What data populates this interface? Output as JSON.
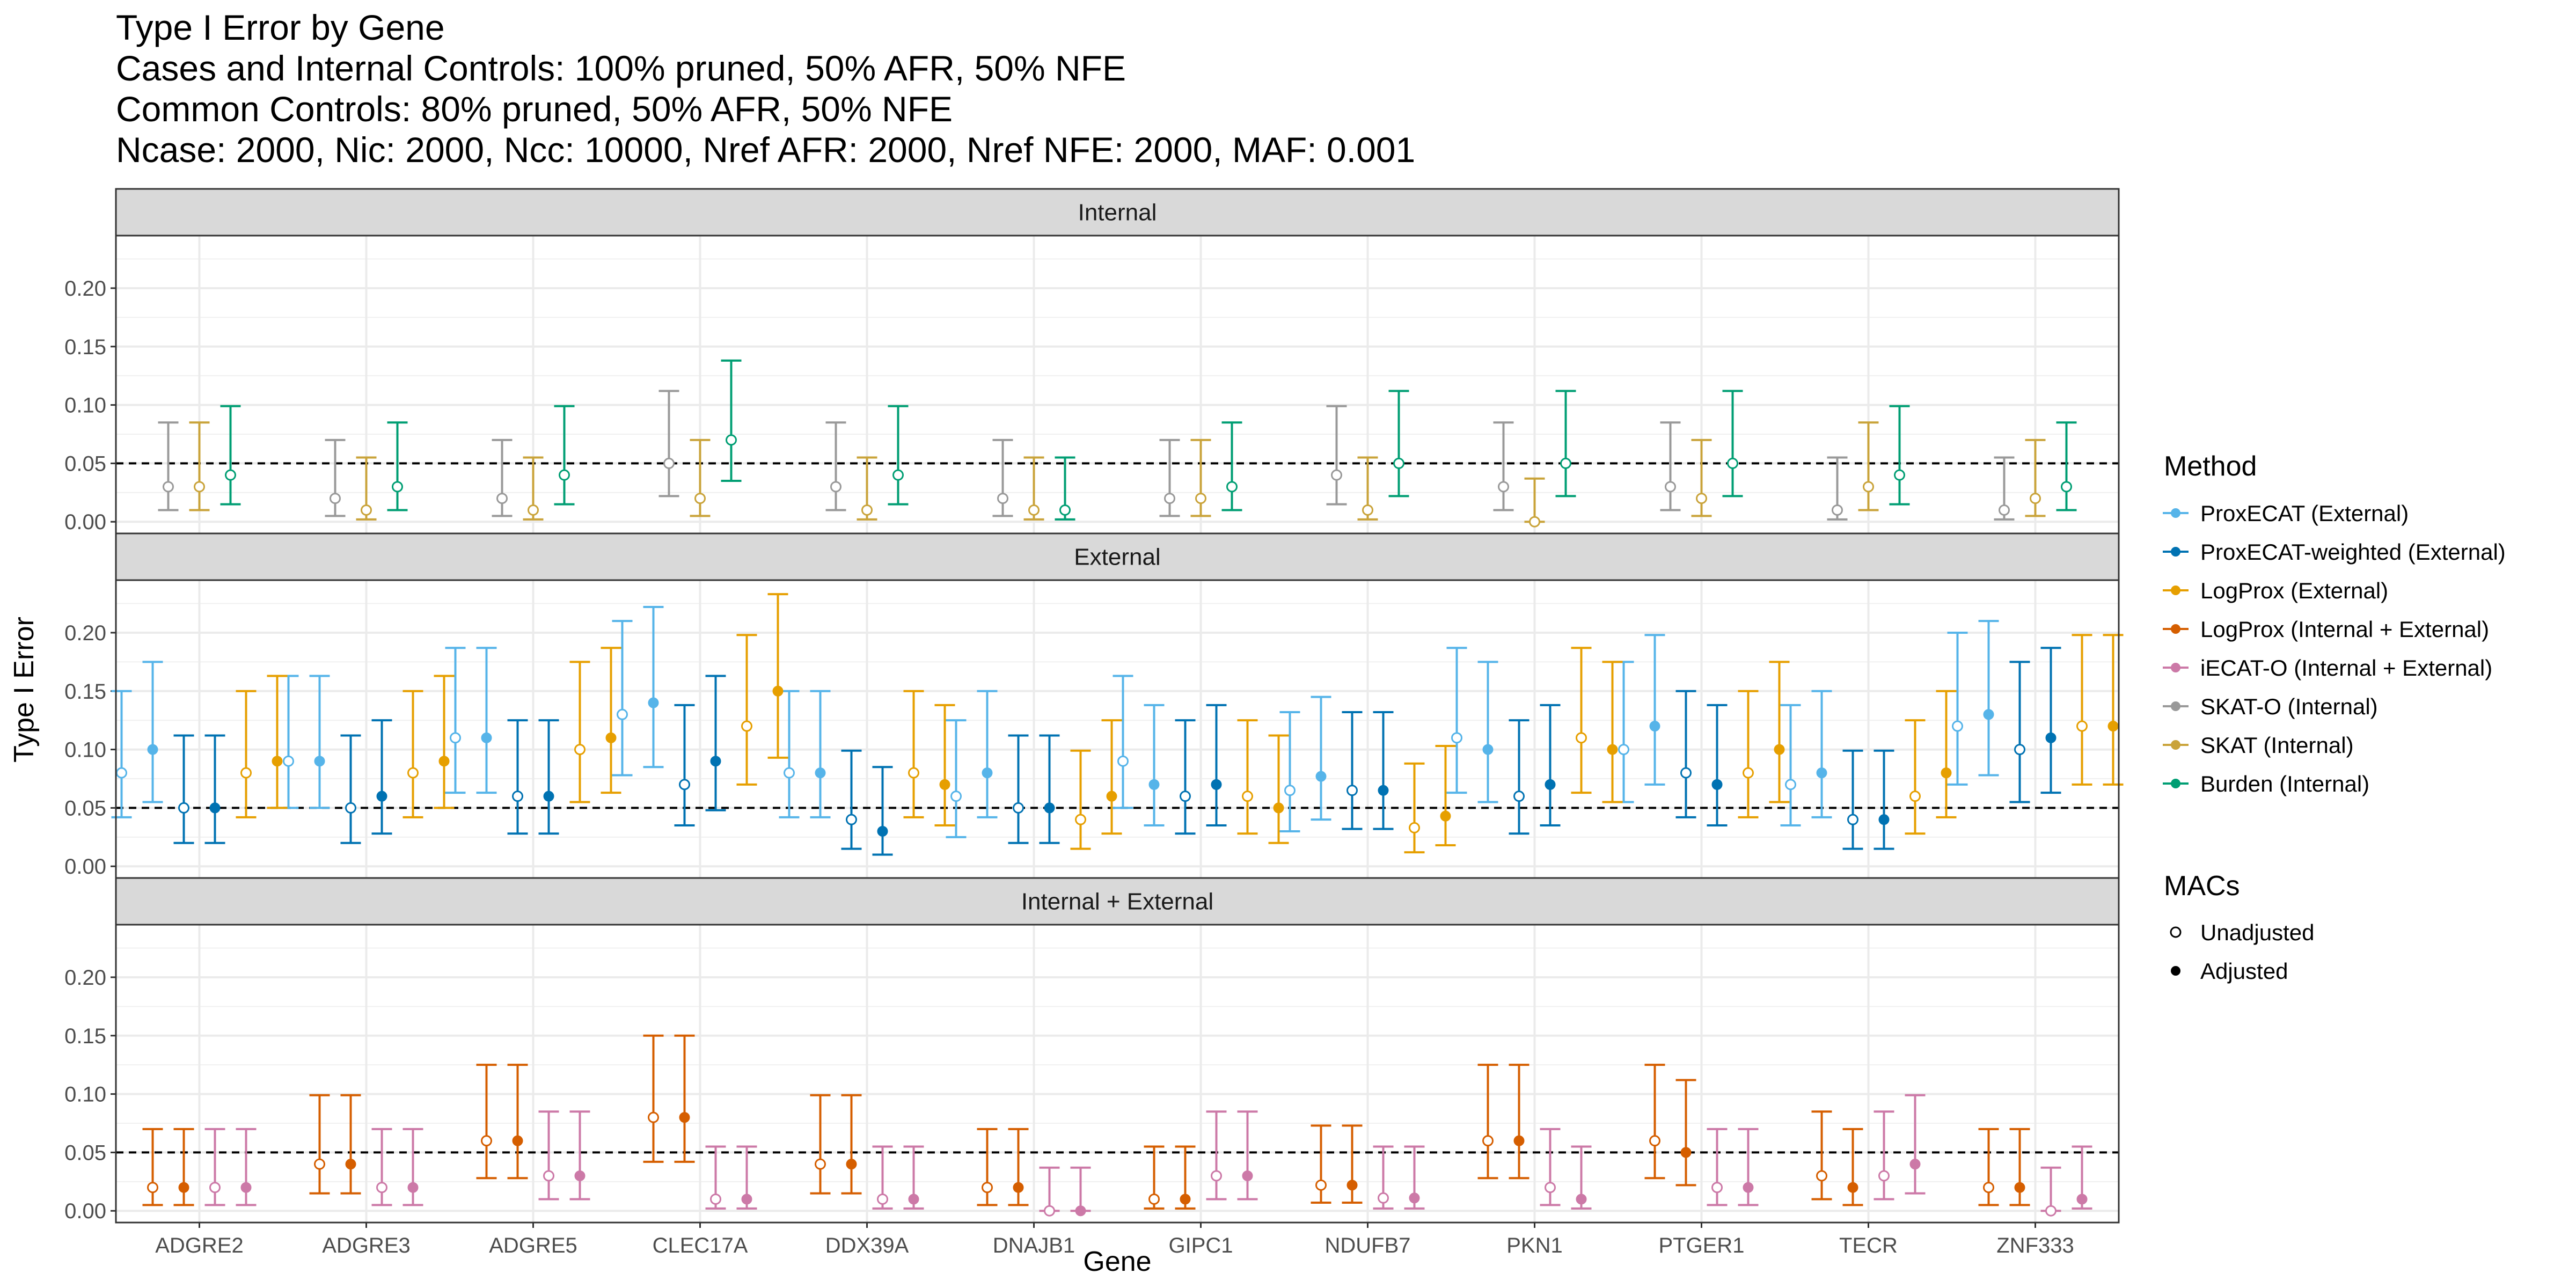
{
  "chart_data": {
    "type": "errorbar",
    "title_lines": [
      "Type I Error by Gene",
      "Cases and Internal Controls: 100% pruned, 50% AFR, 50% NFE",
      "Common Controls: 80% pruned, 50% AFR, 50% NFE",
      "Ncase: 2000, Nic: 2000, Ncc: 10000, Nref AFR: 2000, Nref NFE: 2000, MAF: 0.001"
    ],
    "xlabel": "Gene",
    "ylabel": "Type I Error",
    "ylim": [
      -0.01,
      0.245
    ],
    "yticks": [
      0.0,
      0.05,
      0.1,
      0.15,
      0.2
    ],
    "ytick_labels": [
      "0.00",
      "0.05",
      "0.10",
      "0.15",
      "0.20"
    ],
    "reference_line": 0.05,
    "grid": true,
    "legend_position": "right",
    "categories": [
      "ADGRE2",
      "ADGRE3",
      "ADGRE5",
      "CLEC17A",
      "DDX39A",
      "DNAJB1",
      "GIPC1",
      "NDUFB7",
      "PKN1",
      "PTGER1",
      "TECR",
      "ZNF333"
    ],
    "methods": [
      {
        "name": "ProxECAT (External)",
        "color": "#56B4E9"
      },
      {
        "name": "ProxECAT-weighted (External)",
        "color": "#0072B2"
      },
      {
        "name": "LogProx (External)",
        "color": "#E69F00"
      },
      {
        "name": "LogProx (Internal + External)",
        "color": "#D55E00"
      },
      {
        "name": "iECAT-O (Internal + External)",
        "color": "#CC79A7"
      },
      {
        "name": "SKAT-O (Internal)",
        "color": "#999999"
      },
      {
        "name": "SKAT (Internal)",
        "color": "#C9A33A"
      },
      {
        "name": "Burden (Internal)",
        "color": "#009E73"
      }
    ],
    "legend_method_title": "Method",
    "legend_macs_title": "MACs",
    "macs_labels": [
      "Unadjusted",
      "Adjusted"
    ],
    "panels": [
      {
        "label": "Internal",
        "series": [
          {
            "method": "SKAT-O (Internal)",
            "macs": "Unadjusted",
            "values": [
              0.03,
              0.02,
              0.02,
              0.05,
              0.03,
              0.02,
              0.02,
              0.04,
              0.03,
              0.03,
              0.01,
              0.01
            ],
            "lower": [
              0.01,
              0.005,
              0.005,
              0.022,
              0.01,
              0.005,
              0.005,
              0.015,
              0.01,
              0.01,
              0.002,
              0.002
            ],
            "upper": [
              0.085,
              0.07,
              0.07,
              0.112,
              0.085,
              0.07,
              0.07,
              0.099,
              0.085,
              0.085,
              0.055,
              0.055
            ]
          },
          {
            "method": "SKAT (Internal)",
            "macs": "Unadjusted",
            "values": [
              0.03,
              0.01,
              0.01,
              0.02,
              0.01,
              0.01,
              0.02,
              0.01,
              0.0,
              0.02,
              0.03,
              0.02
            ],
            "lower": [
              0.01,
              0.002,
              0.002,
              0.005,
              0.002,
              0.002,
              0.005,
              0.002,
              0.0,
              0.005,
              0.01,
              0.005
            ],
            "upper": [
              0.085,
              0.055,
              0.055,
              0.07,
              0.055,
              0.055,
              0.07,
              0.055,
              0.037,
              0.07,
              0.085,
              0.07
            ]
          },
          {
            "method": "Burden (Internal)",
            "macs": "Unadjusted",
            "values": [
              0.04,
              0.03,
              0.04,
              0.07,
              0.04,
              0.01,
              0.03,
              0.05,
              0.05,
              0.05,
              0.04,
              0.03
            ],
            "lower": [
              0.015,
              0.01,
              0.015,
              0.035,
              0.015,
              0.002,
              0.01,
              0.022,
              0.022,
              0.022,
              0.015,
              0.01
            ],
            "upper": [
              0.099,
              0.085,
              0.099,
              0.138,
              0.099,
              0.055,
              0.085,
              0.112,
              0.112,
              0.112,
              0.099,
              0.085
            ]
          }
        ]
      },
      {
        "label": "External",
        "series": [
          {
            "method": "ProxECAT (External)",
            "macs": "Unadjusted",
            "values": [
              0.08,
              0.09,
              0.11,
              0.13,
              0.08,
              0.06,
              0.09,
              0.065,
              0.11,
              0.1,
              0.07,
              0.12
            ],
            "lower": [
              0.042,
              0.05,
              0.063,
              0.078,
              0.042,
              0.025,
              0.05,
              0.03,
              0.063,
              0.055,
              0.035,
              0.07
            ],
            "upper": [
              0.15,
              0.163,
              0.187,
              0.21,
              0.15,
              0.125,
              0.163,
              0.132,
              0.187,
              0.175,
              0.138,
              0.2
            ]
          },
          {
            "method": "ProxECAT (External)",
            "macs": "Adjusted",
            "values": [
              0.1,
              0.09,
              0.11,
              0.14,
              0.08,
              0.08,
              0.07,
              0.077,
              0.1,
              0.12,
              0.08,
              0.13
            ],
            "lower": [
              0.055,
              0.05,
              0.063,
              0.085,
              0.042,
              0.042,
              0.035,
              0.04,
              0.055,
              0.07,
              0.042,
              0.078
            ],
            "upper": [
              0.175,
              0.163,
              0.187,
              0.222,
              0.15,
              0.15,
              0.138,
              0.145,
              0.175,
              0.198,
              0.15,
              0.21
            ]
          },
          {
            "method": "ProxECAT-weighted (External)",
            "macs": "Unadjusted",
            "values": [
              0.05,
              0.05,
              0.06,
              0.07,
              0.04,
              0.05,
              0.06,
              0.065,
              0.06,
              0.08,
              0.04,
              0.1
            ],
            "lower": [
              0.02,
              0.02,
              0.028,
              0.035,
              0.015,
              0.02,
              0.028,
              0.032,
              0.028,
              0.042,
              0.015,
              0.055
            ],
            "upper": [
              0.112,
              0.112,
              0.125,
              0.138,
              0.099,
              0.112,
              0.125,
              0.132,
              0.125,
              0.15,
              0.099,
              0.175
            ]
          },
          {
            "method": "ProxECAT-weighted (External)",
            "macs": "Adjusted",
            "values": [
              0.05,
              0.06,
              0.06,
              0.09,
              0.03,
              0.05,
              0.07,
              0.065,
              0.07,
              0.07,
              0.04,
              0.11
            ],
            "lower": [
              0.02,
              0.028,
              0.028,
              0.048,
              0.01,
              0.02,
              0.035,
              0.032,
              0.035,
              0.035,
              0.015,
              0.063
            ],
            "upper": [
              0.112,
              0.125,
              0.125,
              0.163,
              0.085,
              0.112,
              0.138,
              0.132,
              0.138,
              0.138,
              0.099,
              0.187
            ]
          },
          {
            "method": "LogProx (External)",
            "macs": "Unadjusted",
            "values": [
              0.08,
              0.08,
              0.1,
              0.12,
              0.08,
              0.04,
              0.06,
              0.033,
              0.11,
              0.08,
              0.06,
              0.12
            ],
            "lower": [
              0.042,
              0.042,
              0.055,
              0.07,
              0.042,
              0.015,
              0.028,
              0.012,
              0.063,
              0.042,
              0.028,
              0.07
            ],
            "upper": [
              0.15,
              0.15,
              0.175,
              0.198,
              0.15,
              0.099,
              0.125,
              0.088,
              0.187,
              0.15,
              0.125,
              0.198
            ]
          },
          {
            "method": "LogProx (External)",
            "macs": "Adjusted",
            "values": [
              0.09,
              0.09,
              0.11,
              0.15,
              0.07,
              0.06,
              0.05,
              0.043,
              0.1,
              0.1,
              0.08,
              0.12
            ],
            "lower": [
              0.05,
              0.05,
              0.063,
              0.093,
              0.035,
              0.028,
              0.02,
              0.018,
              0.055,
              0.055,
              0.042,
              0.07
            ],
            "upper": [
              0.163,
              0.163,
              0.187,
              0.233,
              0.138,
              0.125,
              0.112,
              0.103,
              0.175,
              0.175,
              0.15,
              0.198
            ]
          }
        ]
      },
      {
        "label": "Internal + External",
        "series": [
          {
            "method": "LogProx (Internal + External)",
            "macs": "Unadjusted",
            "values": [
              0.02,
              0.04,
              0.06,
              0.08,
              0.04,
              0.02,
              0.01,
              0.022,
              0.06,
              0.06,
              0.03,
              0.02
            ],
            "lower": [
              0.005,
              0.015,
              0.028,
              0.042,
              0.015,
              0.005,
              0.002,
              0.007,
              0.028,
              0.028,
              0.01,
              0.005
            ],
            "upper": [
              0.07,
              0.099,
              0.125,
              0.15,
              0.099,
              0.07,
              0.055,
              0.073,
              0.125,
              0.125,
              0.085,
              0.07
            ]
          },
          {
            "method": "LogProx (Internal + External)",
            "macs": "Adjusted",
            "values": [
              0.02,
              0.04,
              0.06,
              0.08,
              0.04,
              0.02,
              0.01,
              0.022,
              0.06,
              0.05,
              0.02,
              0.02
            ],
            "lower": [
              0.005,
              0.015,
              0.028,
              0.042,
              0.015,
              0.005,
              0.002,
              0.007,
              0.028,
              0.022,
              0.005,
              0.005
            ],
            "upper": [
              0.07,
              0.099,
              0.125,
              0.15,
              0.099,
              0.07,
              0.055,
              0.073,
              0.125,
              0.112,
              0.07,
              0.07
            ]
          },
          {
            "method": "iECAT-O (Internal + External)",
            "macs": "Unadjusted",
            "values": [
              0.02,
              0.02,
              0.03,
              0.01,
              0.01,
              0.0,
              0.03,
              0.011,
              0.02,
              0.02,
              0.03,
              0.0
            ],
            "lower": [
              0.005,
              0.005,
              0.01,
              0.002,
              0.002,
              0.0,
              0.01,
              0.002,
              0.005,
              0.005,
              0.01,
              0.0
            ],
            "upper": [
              0.07,
              0.07,
              0.085,
              0.055,
              0.055,
              0.037,
              0.085,
              0.055,
              0.07,
              0.07,
              0.085,
              0.037
            ]
          },
          {
            "method": "iECAT-O (Internal + External)",
            "macs": "Adjusted",
            "values": [
              0.02,
              0.02,
              0.03,
              0.01,
              0.01,
              0.0,
              0.03,
              0.011,
              0.01,
              0.02,
              0.04,
              0.01
            ],
            "lower": [
              0.005,
              0.005,
              0.01,
              0.002,
              0.002,
              0.0,
              0.01,
              0.002,
              0.002,
              0.005,
              0.015,
              0.002
            ],
            "upper": [
              0.07,
              0.07,
              0.085,
              0.055,
              0.055,
              0.037,
              0.085,
              0.055,
              0.055,
              0.07,
              0.099,
              0.055
            ]
          }
        ]
      }
    ]
  }
}
